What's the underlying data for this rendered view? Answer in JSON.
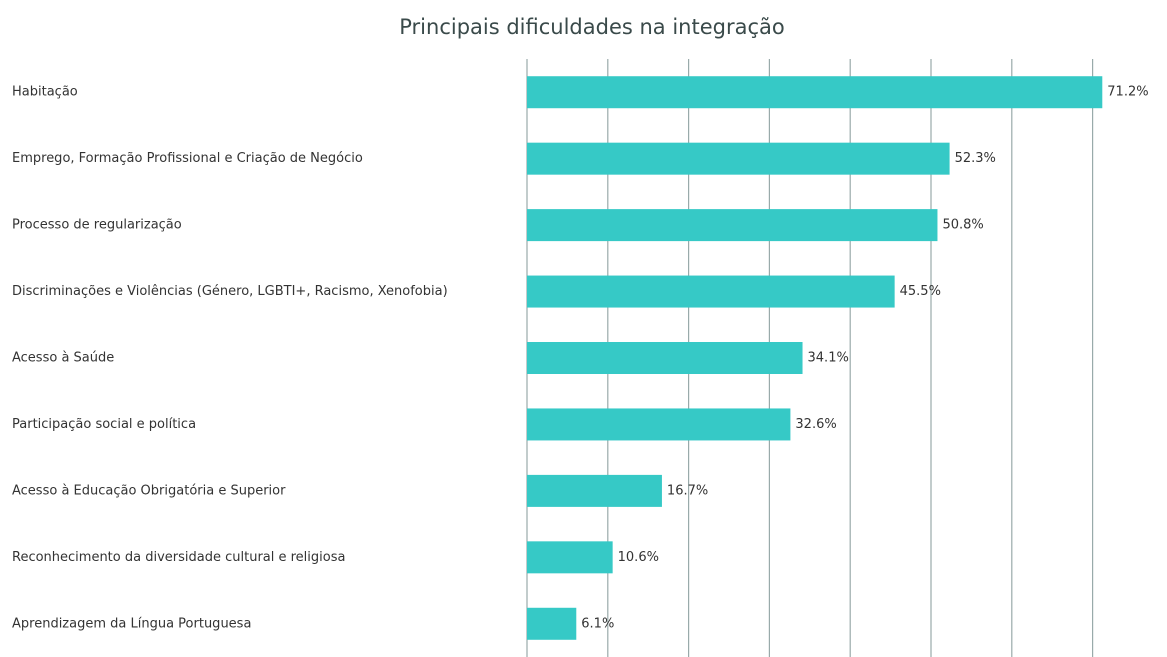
{
  "chart_data": {
    "type": "bar",
    "orientation": "horizontal",
    "title": "Principais dificuldades na integração",
    "categories": [
      "Habitação",
      "Emprego, Formação Profissional e Criação de Negócio",
      "Processo de regularização",
      "Discriminações e Violências (Género, LGBTI+, Racismo, Xenofobia)",
      "Acesso à Saúde",
      "Participação social e política",
      "Acesso à Educação Obrigatória e Superior",
      "Reconhecimento da diversidade cultural e religiosa",
      "Aprendizagem da Língua Portuguesa"
    ],
    "values": [
      71.2,
      52.3,
      50.8,
      45.5,
      34.1,
      32.6,
      16.7,
      10.6,
      6.1
    ],
    "value_labels": [
      "71.2%",
      "52.3%",
      "50.8%",
      "45.5%",
      "34.1%",
      "32.6%",
      "16.7%",
      "10.6%",
      "6.1%"
    ],
    "color": "#36c9c6",
    "xlim": [
      0,
      75
    ],
    "xticks": [
      0,
      10,
      20,
      30,
      40,
      50,
      60,
      70
    ],
    "grid": true
  }
}
